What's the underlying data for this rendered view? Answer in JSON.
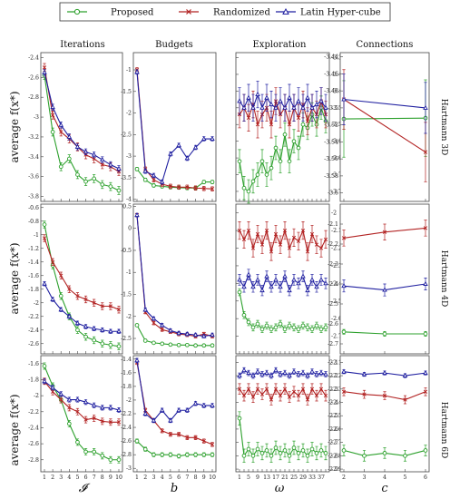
{
  "legend": [
    {
      "name": "Proposed",
      "color": "#2ca02c",
      "marker": "circle"
    },
    {
      "name": "Randomized",
      "color": "#b22222",
      "marker": "x"
    },
    {
      "name": "Latin Hyper-cube",
      "color": "#1f1fa0",
      "marker": "triangle"
    }
  ],
  "column_titles": [
    "Iterations",
    "Budgets",
    "Exploration",
    "Connections"
  ],
  "row_labels": [
    "Hartmann 3D",
    "Hartmann 4D",
    "Hartmann 6D"
  ],
  "ylabel": "average f(x*)",
  "xlabels": [
    "𝓘",
    "b",
    "ω",
    "c"
  ],
  "chart_data": [
    {
      "type": "line",
      "title": "Iterations",
      "row": "Hartmann 3D",
      "x": [
        1,
        2,
        3,
        4,
        5,
        6,
        7,
        8,
        9,
        10
      ],
      "xticks": [
        "1",
        "2",
        "3",
        "4",
        "5",
        "6",
        "7",
        "8",
        "9",
        "10"
      ],
      "ylim": [
        -3.85,
        -2.35
      ],
      "yticks": [
        -2.4,
        -2.6,
        -2.8,
        -3,
        -3.2,
        -3.4,
        -3.6,
        -3.8
      ],
      "series": [
        {
          "name": "Proposed",
          "values": [
            -2.58,
            -3.15,
            -3.5,
            -3.42,
            -3.58,
            -3.65,
            -3.62,
            -3.68,
            -3.7,
            -3.74
          ],
          "err": 0.04
        },
        {
          "name": "Randomized",
          "values": [
            -2.5,
            -2.98,
            -3.15,
            -3.22,
            -3.3,
            -3.38,
            -3.42,
            -3.48,
            -3.5,
            -3.55
          ],
          "err": 0.04
        },
        {
          "name": "Latin Hyper-cube",
          "values": [
            -2.55,
            -2.9,
            -3.08,
            -3.2,
            -3.3,
            -3.35,
            -3.38,
            -3.43,
            -3.48,
            -3.52
          ],
          "err": 0.03
        }
      ]
    },
    {
      "type": "line",
      "title": "Budgets",
      "row": "Hartmann 3D",
      "x": [
        1,
        2,
        3,
        4,
        5,
        6,
        7,
        8,
        9,
        10
      ],
      "xticks": [
        "1",
        "2",
        "3",
        "4",
        "5",
        "6",
        "7",
        "8",
        "9",
        "10"
      ],
      "ylim": [
        -4.05,
        -0.6
      ],
      "yticks": [
        -1,
        -1.5,
        -2,
        -2.5,
        -3,
        -3.5,
        -4
      ],
      "series": [
        {
          "name": "Proposed",
          "values": [
            -3.3,
            -3.55,
            -3.68,
            -3.7,
            -3.72,
            -3.73,
            -3.74,
            -3.74,
            -3.6,
            -3.6
          ],
          "err": 0.04
        },
        {
          "name": "Randomized",
          "values": [
            -1.0,
            -3.3,
            -3.55,
            -3.65,
            -3.7,
            -3.72,
            -3.72,
            -3.74,
            -3.75,
            -3.76
          ],
          "err": 0.05
        },
        {
          "name": "Latin Hyper-cube",
          "values": [
            -1.05,
            -3.35,
            -3.45,
            -3.6,
            -2.95,
            -2.75,
            -3.05,
            -2.8,
            -2.6,
            -2.6
          ],
          "err": 0.05
        }
      ]
    },
    {
      "type": "line",
      "title": "Exploration",
      "row": "Hartmann 3D",
      "x": [
        1,
        3,
        5,
        7,
        9,
        11,
        13,
        15,
        17,
        19,
        21,
        23,
        25,
        27,
        29,
        31,
        33,
        35,
        37,
        39
      ],
      "xticks": [
        "1",
        "5",
        "9",
        "13",
        "17",
        "21",
        "25",
        "29",
        "33",
        "37"
      ],
      "ylim": [
        -3.78,
        -3.335
      ],
      "yticks": [
        -3.35,
        -3.4,
        -3.45,
        -3.5,
        -3.55,
        -3.6,
        -3.65,
        -3.7,
        -3.75
      ],
      "series": [
        {
          "name": "Proposed",
          "values": [
            -3.66,
            -3.74,
            -3.75,
            -3.72,
            -3.7,
            -3.66,
            -3.7,
            -3.68,
            -3.62,
            -3.66,
            -3.58,
            -3.66,
            -3.6,
            -3.62,
            -3.55,
            -3.56,
            -3.52,
            -3.55,
            -3.5,
            -3.54
          ],
          "err": 0.035
        },
        {
          "name": "Randomized",
          "values": [
            -3.52,
            -3.5,
            -3.53,
            -3.49,
            -3.55,
            -3.52,
            -3.5,
            -3.55,
            -3.48,
            -3.52,
            -3.5,
            -3.55,
            -3.5,
            -3.53,
            -3.49,
            -3.54,
            -3.5,
            -3.52,
            -3.48,
            -3.52
          ],
          "err": 0.04
        },
        {
          "name": "Latin Hyper-cube",
          "values": [
            -3.48,
            -3.5,
            -3.47,
            -3.5,
            -3.46,
            -3.5,
            -3.47,
            -3.49,
            -3.5,
            -3.48,
            -3.5,
            -3.47,
            -3.5,
            -3.48,
            -3.5,
            -3.47,
            -3.5,
            -3.49,
            -3.48,
            -3.5
          ],
          "err": 0.04
        }
      ]
    },
    {
      "type": "line",
      "title": "Connections",
      "row": "Hartmann 3D",
      "x": [
        2,
        3
      ],
      "xticks": [
        "2",
        "3"
      ],
      "ylim": [
        -3.61,
        -3.435
      ],
      "yticks": [
        -3.44,
        -3.46,
        -3.48,
        -3.5,
        -3.52,
        -3.54,
        -3.56,
        -3.58,
        -3.6
      ],
      "series": [
        {
          "name": "Proposed",
          "values": [
            -3.513,
            -3.512
          ],
          "err": 0.045
        },
        {
          "name": "Randomized",
          "values": [
            -3.49,
            -3.552
          ],
          "err": 0.035
        },
        {
          "name": "Latin Hyper-cube",
          "values": [
            -3.49,
            -3.5
          ],
          "err": 0.03
        }
      ]
    },
    {
      "type": "line",
      "title": "Iterations",
      "row": "Hartmann 4D",
      "x": [
        1,
        2,
        3,
        4,
        5,
        6,
        7,
        8,
        9,
        10
      ],
      "xticks": [
        "1",
        "2",
        "3",
        "4",
        "5",
        "6",
        "7",
        "8",
        "9",
        "10"
      ],
      "ylim": [
        -2.75,
        -0.55
      ],
      "yticks": [
        -0.6,
        -0.8,
        -1,
        -1.2,
        -1.4,
        -1.6,
        -1.8,
        -2,
        -2.2,
        -2.4,
        -2.6
      ],
      "series": [
        {
          "name": "Proposed",
          "values": [
            -0.85,
            -1.45,
            -1.9,
            -2.2,
            -2.4,
            -2.5,
            -2.55,
            -2.6,
            -2.62,
            -2.64
          ],
          "err": 0.05
        },
        {
          "name": "Randomized",
          "values": [
            -1.05,
            -1.4,
            -1.6,
            -1.8,
            -1.9,
            -1.95,
            -2.0,
            -2.05,
            -2.05,
            -2.1
          ],
          "err": 0.05
        },
        {
          "name": "Latin Hyper-cube",
          "values": [
            -1.72,
            -1.95,
            -2.1,
            -2.2,
            -2.3,
            -2.35,
            -2.38,
            -2.4,
            -2.42,
            -2.42
          ],
          "err": 0.03
        }
      ]
    },
    {
      "type": "line",
      "title": "Budgets",
      "row": "Hartmann 4D",
      "x": [
        1,
        2,
        3,
        4,
        5,
        6,
        7,
        8,
        9,
        10
      ],
      "xticks": [
        "1",
        "2",
        "3",
        "4",
        "5",
        "6",
        "7",
        "8",
        "9",
        "10"
      ],
      "ylim": [
        -2.85,
        0.55
      ],
      "yticks": [
        0.5,
        0,
        -0.5,
        -1,
        -1.5,
        -2,
        -2.5
      ],
      "series": [
        {
          "name": "Proposed",
          "values": [
            -2.2,
            -2.55,
            -2.6,
            -2.62,
            -2.64,
            -2.65,
            -2.65,
            -2.66,
            -2.66,
            -2.66
          ],
          "err": 0.03
        },
        {
          "name": "Randomized",
          "values": [
            0.3,
            -1.9,
            -2.15,
            -2.3,
            -2.35,
            -2.4,
            -2.42,
            -2.45,
            -2.4,
            -2.45
          ],
          "err": 0.04
        },
        {
          "name": "Latin Hyper-cube",
          "values": [
            0.3,
            -1.85,
            -2.05,
            -2.2,
            -2.32,
            -2.38,
            -2.4,
            -2.42,
            -2.45,
            -2.42
          ],
          "err": 0.04
        }
      ]
    },
    {
      "type": "line",
      "title": "Exploration",
      "row": "Hartmann 4D",
      "x": [
        1,
        3,
        5,
        7,
        9,
        11,
        13,
        15,
        17,
        19,
        21,
        23,
        25,
        27,
        29,
        31,
        33,
        35,
        37,
        39
      ],
      "xticks": [
        "1",
        "5",
        "9",
        "13",
        "17",
        "21",
        "25",
        "29",
        "33",
        "37"
      ],
      "ylim": [
        -2.8,
        -1.95
      ],
      "yticks": [
        -2,
        -2.1,
        -2.2,
        -2.3,
        -2.4,
        -2.5,
        -2.6,
        -2.7
      ],
      "series": [
        {
          "name": "Proposed",
          "values": [
            -2.45,
            -2.58,
            -2.62,
            -2.65,
            -2.63,
            -2.66,
            -2.64,
            -2.66,
            -2.65,
            -2.63,
            -2.66,
            -2.64,
            -2.65,
            -2.66,
            -2.64,
            -2.65,
            -2.66,
            -2.64,
            -2.66,
            -2.65
          ],
          "err": 0.02
        },
        {
          "name": "Randomized",
          "values": [
            -2.1,
            -2.15,
            -2.1,
            -2.2,
            -2.12,
            -2.18,
            -2.1,
            -2.22,
            -2.12,
            -2.18,
            -2.1,
            -2.2,
            -2.14,
            -2.16,
            -2.1,
            -2.22,
            -2.12,
            -2.18,
            -2.2,
            -2.15
          ],
          "err": 0.05
        },
        {
          "name": "Latin Hyper-cube",
          "values": [
            -2.38,
            -2.42,
            -2.35,
            -2.42,
            -2.38,
            -2.44,
            -2.36,
            -2.42,
            -2.38,
            -2.42,
            -2.36,
            -2.44,
            -2.38,
            -2.4,
            -2.36,
            -2.44,
            -2.38,
            -2.42,
            -2.38,
            -2.4
          ],
          "err": 0.03
        }
      ]
    },
    {
      "type": "line",
      "title": "Connections",
      "row": "Hartmann 4D",
      "x": [
        2,
        3,
        4
      ],
      "xticks": [
        "2",
        "3",
        "4"
      ],
      "ylim": [
        -2.75,
        -2.0
      ],
      "yticks": [
        -2.1,
        -2.2,
        -2.3,
        -2.4,
        -2.5,
        -2.6,
        -2.7
      ],
      "series": [
        {
          "name": "Proposed",
          "values": [
            -2.64,
            -2.65,
            -2.65
          ],
          "err": 0.012
        },
        {
          "name": "Randomized",
          "values": [
            -2.17,
            -2.14,
            -2.12
          ],
          "err": 0.04
        },
        {
          "name": "Latin Hyper-cube",
          "values": [
            -2.41,
            -2.43,
            -2.4
          ],
          "err": 0.03
        }
      ]
    },
    {
      "type": "line",
      "title": "Iterations",
      "row": "Hartmann 6D",
      "x": [
        1,
        2,
        3,
        4,
        5,
        6,
        7,
        8,
        9,
        10
      ],
      "xticks": [
        "1",
        "2",
        "3",
        "4",
        "5",
        "6",
        "7",
        "8",
        "9",
        "10"
      ],
      "ylim": [
        -2.95,
        -1.5
      ],
      "yticks": [
        -1.6,
        -1.8,
        -2,
        -2.2,
        -2.4,
        -2.6,
        -2.8
      ],
      "series": [
        {
          "name": "Proposed",
          "values": [
            -1.63,
            -1.88,
            -2.05,
            -2.35,
            -2.58,
            -2.7,
            -2.7,
            -2.75,
            -2.8,
            -2.8
          ],
          "err": 0.04
        },
        {
          "name": "Randomized",
          "values": [
            -1.82,
            -1.95,
            -2.05,
            -2.15,
            -2.2,
            -2.3,
            -2.28,
            -2.32,
            -2.33,
            -2.33
          ],
          "err": 0.04
        },
        {
          "name": "Latin Hyper-cube",
          "values": [
            -1.82,
            -1.9,
            -1.98,
            -2.05,
            -2.05,
            -2.08,
            -2.12,
            -2.15,
            -2.15,
            -2.18
          ],
          "err": 0.03
        }
      ]
    },
    {
      "type": "line",
      "title": "Budgets",
      "row": "Hartmann 6D",
      "x": [
        1,
        2,
        3,
        4,
        5,
        6,
        7,
        8,
        9,
        10
      ],
      "xticks": [
        "1",
        "2",
        "3",
        "4",
        "5",
        "6",
        "7",
        "8",
        "9",
        "10"
      ],
      "ylim": [
        -3.05,
        -1.35
      ],
      "yticks": [
        -1.4,
        -1.6,
        -1.8,
        -2,
        -2.2,
        -2.4,
        -2.6,
        -2.8,
        -3
      ],
      "series": [
        {
          "name": "Proposed",
          "values": [
            -2.6,
            -2.72,
            -2.8,
            -2.8,
            -2.8,
            -2.82,
            -2.8,
            -2.8,
            -2.8,
            -2.8
          ],
          "err": 0.03
        },
        {
          "name": "Randomized",
          "values": [
            -1.45,
            -2.15,
            -2.3,
            -2.45,
            -2.5,
            -2.5,
            -2.55,
            -2.55,
            -2.6,
            -2.65
          ],
          "err": 0.03
        },
        {
          "name": "Latin Hyper-cube",
          "values": [
            -1.42,
            -2.2,
            -2.3,
            -2.15,
            -2.3,
            -2.15,
            -2.15,
            -2.05,
            -2.08,
            -2.08
          ],
          "err": 0.03
        }
      ]
    },
    {
      "type": "line",
      "title": "Exploration",
      "row": "Hartmann 6D",
      "x": [
        1,
        3,
        5,
        7,
        9,
        11,
        13,
        15,
        17,
        19,
        21,
        23,
        25,
        27,
        29,
        31,
        33,
        35,
        37,
        39
      ],
      "xticks": [
        "1",
        "5",
        "9",
        "13",
        "17",
        "21",
        "25",
        "29",
        "33",
        "37"
      ],
      "ylim": [
        -2.92,
        -2.05
      ],
      "yticks": [
        -2.1,
        -2.2,
        -2.3,
        -2.4,
        -2.5,
        -2.6,
        -2.7,
        -2.8,
        -2.9
      ],
      "series": [
        {
          "name": "Proposed",
          "values": [
            -2.52,
            -2.8,
            -2.75,
            -2.8,
            -2.75,
            -2.78,
            -2.76,
            -2.8,
            -2.74,
            -2.78,
            -2.76,
            -2.8,
            -2.74,
            -2.78,
            -2.76,
            -2.8,
            -2.75,
            -2.78,
            -2.76,
            -2.78
          ],
          "err": 0.05
        },
        {
          "name": "Randomized",
          "values": [
            -2.3,
            -2.35,
            -2.3,
            -2.36,
            -2.3,
            -2.34,
            -2.3,
            -2.38,
            -2.3,
            -2.35,
            -2.3,
            -2.36,
            -2.32,
            -2.35,
            -2.3,
            -2.38,
            -2.3,
            -2.35,
            -2.3,
            -2.35
          ],
          "err": 0.04
        },
        {
          "name": "Latin Hyper-cube",
          "values": [
            -2.2,
            -2.16,
            -2.18,
            -2.2,
            -2.17,
            -2.19,
            -2.18,
            -2.2,
            -2.16,
            -2.19,
            -2.18,
            -2.2,
            -2.17,
            -2.19,
            -2.18,
            -2.2,
            -2.17,
            -2.19,
            -2.18,
            -2.19
          ],
          "err": 0.02
        }
      ]
    },
    {
      "type": "line",
      "title": "Connections",
      "row": "Hartmann 6D",
      "x": [
        2,
        3,
        4,
        5,
        6
      ],
      "xticks": [
        "2",
        "3",
        "4",
        "5",
        "6"
      ],
      "ylim": [
        -2.92,
        -2.05
      ],
      "yticks": [
        -2.1,
        -2.2,
        -2.3,
        -2.4,
        -2.5,
        -2.6,
        -2.7,
        -2.8,
        -2.9
      ],
      "series": [
        {
          "name": "Proposed",
          "values": [
            -2.76,
            -2.8,
            -2.78,
            -2.8,
            -2.76
          ],
          "err": 0.04
        },
        {
          "name": "Randomized",
          "values": [
            -2.32,
            -2.34,
            -2.35,
            -2.38,
            -2.32
          ],
          "err": 0.03
        },
        {
          "name": "Latin Hyper-cube",
          "values": [
            -2.17,
            -2.19,
            -2.18,
            -2.2,
            -2.18
          ],
          "err": 0.015
        }
      ]
    }
  ]
}
